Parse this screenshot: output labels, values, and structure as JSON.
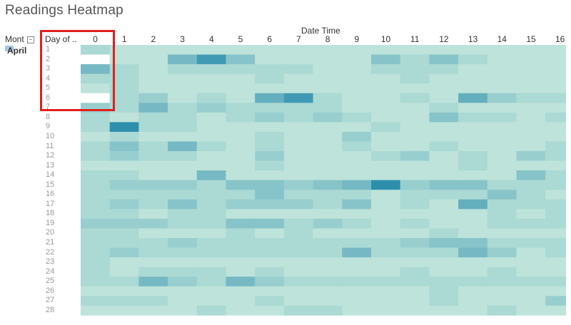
{
  "title": "Readings Heatmap",
  "headers": {
    "month": "Mont",
    "month_btn": "–",
    "day": "Day of ..",
    "column_field": "Date Time"
  },
  "month_value": "April",
  "colors": {
    "highlight": "#e0201c",
    "scale_low": "#bde3da",
    "scale_high": "#2e8fad",
    "empty": "#ffffff"
  },
  "chart_data": {
    "type": "heatmap",
    "title": "Readings Heatmap",
    "xlabel": "Date Time",
    "ylabel": "Day of ..",
    "x": [
      0,
      1,
      2,
      3,
      4,
      5,
      6,
      7,
      8,
      9,
      10,
      11,
      12,
      13,
      14,
      15,
      16
    ],
    "y": [
      1,
      2,
      3,
      4,
      5,
      6,
      7,
      8,
      9,
      10,
      11,
      12,
      13,
      14,
      15,
      16,
      17,
      18,
      19,
      20,
      21,
      22,
      23,
      24,
      25,
      26,
      27,
      28
    ],
    "values": [
      [
        2,
        1,
        1,
        1,
        1,
        1,
        1,
        1,
        1,
        1,
        1,
        1,
        1,
        1,
        1,
        1,
        1
      ],
      [
        null,
        1,
        1,
        5,
        8,
        4,
        1,
        1,
        1,
        1,
        4,
        2,
        4,
        2,
        1,
        1,
        1
      ],
      [
        5,
        2,
        1,
        2,
        2,
        2,
        2,
        2,
        1,
        1,
        2,
        2,
        2,
        1,
        1,
        1,
        1
      ],
      [
        2,
        2,
        1,
        1,
        1,
        1,
        2,
        1,
        1,
        1,
        1,
        2,
        1,
        1,
        1,
        1,
        1
      ],
      [
        1,
        2,
        1,
        1,
        1,
        1,
        1,
        1,
        1,
        1,
        1,
        1,
        1,
        1,
        1,
        1,
        1
      ],
      [
        null,
        2,
        3,
        1,
        2,
        1,
        6,
        8,
        2,
        1,
        1,
        2,
        1,
        6,
        3,
        2,
        2
      ],
      [
        3,
        2,
        5,
        2,
        3,
        2,
        2,
        2,
        2,
        1,
        1,
        1,
        2,
        1,
        1,
        1,
        1
      ],
      [
        2,
        1,
        2,
        2,
        1,
        2,
        3,
        2,
        3,
        2,
        1,
        1,
        4,
        2,
        2,
        1,
        2
      ],
      [
        2,
        9,
        2,
        2,
        1,
        1,
        1,
        1,
        1,
        1,
        2,
        1,
        1,
        1,
        1,
        1,
        1
      ],
      [
        1,
        2,
        1,
        1,
        1,
        1,
        2,
        1,
        1,
        3,
        1,
        1,
        1,
        1,
        1,
        1,
        1
      ],
      [
        2,
        4,
        2,
        5,
        2,
        1,
        2,
        1,
        1,
        2,
        1,
        1,
        2,
        1,
        1,
        1,
        2
      ],
      [
        2,
        3,
        2,
        2,
        1,
        1,
        3,
        1,
        1,
        1,
        2,
        3,
        1,
        2,
        1,
        3,
        2
      ],
      [
        1,
        1,
        1,
        1,
        1,
        1,
        2,
        1,
        1,
        1,
        1,
        1,
        1,
        2,
        1,
        1,
        1
      ],
      [
        2,
        2,
        1,
        1,
        5,
        1,
        1,
        1,
        1,
        1,
        1,
        1,
        1,
        1,
        1,
        4,
        2
      ],
      [
        2,
        3,
        3,
        3,
        2,
        4,
        4,
        3,
        4,
        5,
        9,
        3,
        4,
        4,
        2,
        2,
        2
      ],
      [
        2,
        2,
        2,
        2,
        2,
        2,
        4,
        2,
        2,
        2,
        1,
        2,
        2,
        2,
        4,
        2,
        1
      ],
      [
        2,
        3,
        2,
        4,
        2,
        3,
        3,
        3,
        2,
        4,
        1,
        2,
        1,
        6,
        2,
        2,
        2
      ],
      [
        2,
        2,
        1,
        2,
        2,
        1,
        1,
        1,
        1,
        1,
        1,
        1,
        1,
        1,
        2,
        1,
        2
      ],
      [
        3,
        3,
        3,
        2,
        2,
        4,
        4,
        2,
        3,
        2,
        1,
        2,
        1,
        1,
        2,
        2,
        2
      ],
      [
        2,
        2,
        1,
        1,
        1,
        2,
        1,
        2,
        1,
        1,
        1,
        1,
        2,
        1,
        1,
        1,
        1
      ],
      [
        2,
        2,
        2,
        3,
        2,
        2,
        2,
        2,
        2,
        2,
        2,
        3,
        4,
        4,
        2,
        2,
        2
      ],
      [
        2,
        3,
        2,
        2,
        2,
        2,
        2,
        2,
        2,
        5,
        2,
        2,
        2,
        5,
        3,
        1,
        2
      ],
      [
        2,
        1,
        1,
        1,
        1,
        1,
        1,
        1,
        1,
        1,
        1,
        1,
        1,
        1,
        1,
        1,
        1
      ],
      [
        2,
        1,
        2,
        2,
        2,
        1,
        2,
        1,
        1,
        1,
        1,
        2,
        1,
        1,
        2,
        1,
        1
      ],
      [
        2,
        2,
        5,
        3,
        2,
        5,
        3,
        2,
        2,
        2,
        2,
        2,
        2,
        2,
        2,
        2,
        2
      ],
      [
        1,
        1,
        1,
        1,
        1,
        1,
        1,
        1,
        1,
        1,
        1,
        1,
        2,
        1,
        1,
        1,
        1
      ],
      [
        2,
        2,
        2,
        1,
        1,
        1,
        2,
        1,
        1,
        1,
        1,
        1,
        2,
        1,
        1,
        1,
        3
      ],
      [
        1,
        1,
        1,
        1,
        2,
        1,
        1,
        2,
        2,
        1,
        1,
        1,
        1,
        1,
        2,
        1,
        1
      ]
    ],
    "value_scale": [
      1,
      9
    ],
    "note_empty": "null = no reading (white cell)",
    "legend": "none",
    "grid": false
  }
}
